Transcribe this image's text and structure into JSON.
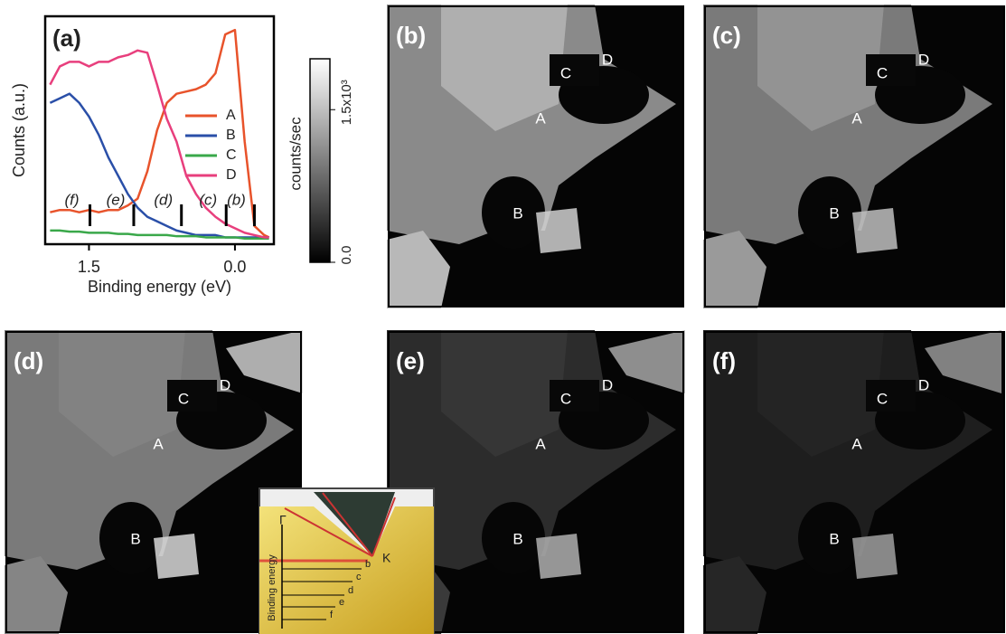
{
  "chart_data": {
    "type": "line",
    "title": "(a)",
    "xlabel": "Binding energy (eV)",
    "ylabel": "Counts (a.u.)",
    "x": [
      1.9,
      1.8,
      1.7,
      1.6,
      1.5,
      1.4,
      1.3,
      1.2,
      1.1,
      1.0,
      0.9,
      0.8,
      0.7,
      0.6,
      0.5,
      0.4,
      0.3,
      0.2,
      0.1,
      0.0,
      -0.1,
      -0.2,
      -0.3,
      -0.35
    ],
    "xlim": [
      1.95,
      -0.4
    ],
    "xticks": [
      {
        "value": 1.5,
        "label": "1.5"
      },
      {
        "value": 0,
        "label": "0.0"
      }
    ],
    "ylim": [
      0,
      100
    ],
    "series": [
      {
        "name": "A",
        "color": "#e8532b",
        "values": [
          14,
          15,
          15,
          14,
          15,
          14,
          15,
          15,
          17,
          20,
          32,
          50,
          62,
          66,
          67,
          68,
          70,
          75,
          92,
          94,
          45,
          8,
          4,
          3
        ]
      },
      {
        "name": "B",
        "color": "#2a4fa8",
        "values": [
          62,
          64,
          66,
          62,
          56,
          48,
          38,
          30,
          22,
          16,
          12,
          10,
          8,
          6,
          5,
          4,
          4,
          4,
          3,
          3,
          3,
          3,
          3,
          3
        ]
      },
      {
        "name": "C",
        "color": "#3aa84a",
        "values": [
          6,
          6,
          5.5,
          5.5,
          5,
          5,
          5,
          4.5,
          4.5,
          4,
          4,
          4,
          4,
          3.5,
          3.5,
          3.5,
          3,
          3,
          3,
          3,
          2.5,
          2.5,
          2.5,
          2.5
        ]
      },
      {
        "name": "D",
        "color": "#e83f7d",
        "values": [
          70,
          78,
          80,
          80,
          78,
          80,
          80,
          82,
          83,
          85,
          84,
          70,
          55,
          45,
          30,
          22,
          16,
          12,
          9,
          7,
          5,
          4,
          3,
          3
        ]
      }
    ],
    "markers": [
      {
        "label": "(f)",
        "value": 1.49
      },
      {
        "label": "(e)",
        "value": 1.04
      },
      {
        "label": "(d)",
        "value": 0.55
      },
      {
        "label": "(c)",
        "value": 0.09
      },
      {
        "label": "(b)",
        "value": -0.2
      }
    ]
  },
  "colorbar": {
    "label": "counts/sec",
    "ticks": [
      {
        "value": 0,
        "label": "0.0"
      },
      {
        "value": 1500,
        "label": "1.5x10³"
      }
    ],
    "lim": [
      0,
      2000
    ]
  },
  "panels": [
    {
      "label": "(b)",
      "regions": [
        "A",
        "B",
        "C",
        "D"
      ]
    },
    {
      "label": "(c)",
      "regions": [
        "A",
        "B",
        "C",
        "D"
      ]
    },
    {
      "label": "(d)",
      "regions": [
        "A",
        "B",
        "C",
        "D"
      ]
    },
    {
      "label": "(e)",
      "regions": [
        "A",
        "B",
        "C",
        "D"
      ]
    },
    {
      "label": "(f)",
      "regions": [
        "A",
        "B",
        "C",
        "D"
      ]
    }
  ],
  "inset": {
    "labels": [
      "Γ",
      "K",
      "b",
      "c",
      "d",
      "e",
      "f"
    ],
    "axis_label": "Binding energy"
  }
}
